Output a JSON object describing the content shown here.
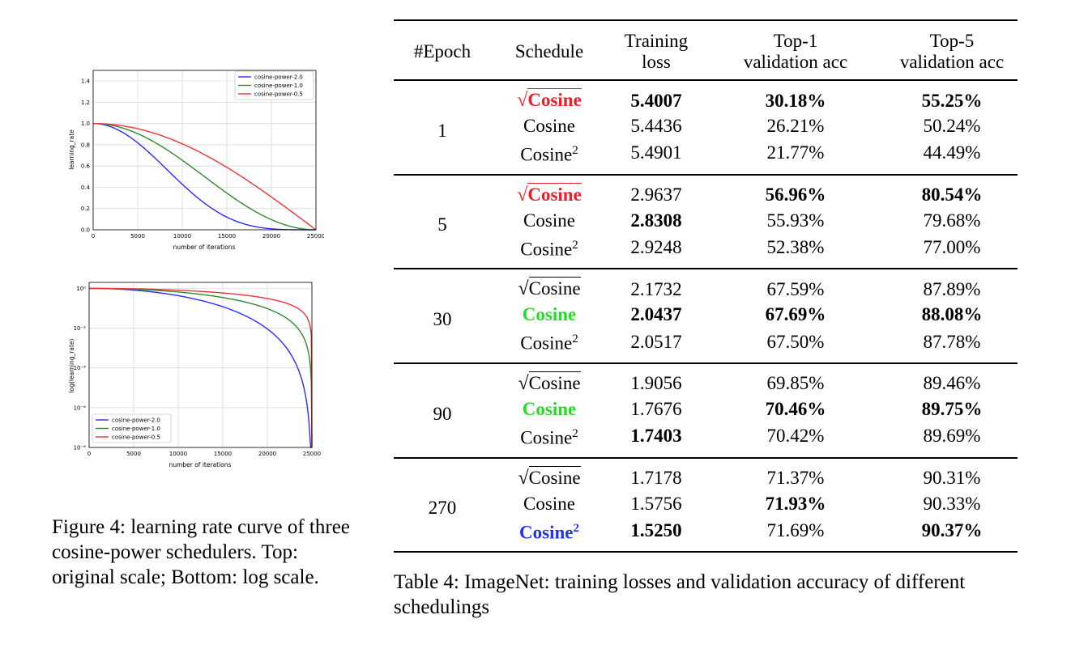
{
  "figure": {
    "caption": "Figure 4: learning rate curve of three cosine-power schedulers. Top: original scale; Bottom: log scale."
  },
  "charts": [
    {
      "type": "line",
      "xlabel": "number of iterations",
      "ylabel": "learning_rate",
      "xlim": [
        0,
        25000
      ],
      "ylim": [
        0,
        1.5
      ],
      "xticks": [
        "0",
        "5000",
        "10000",
        "15000",
        "20000",
        "25000"
      ],
      "yticks": [
        "0.0",
        "0.2",
        "0.4",
        "0.6",
        "0.8",
        "1.0",
        "1.2",
        "1.4"
      ],
      "grid": true,
      "log_y": false,
      "legend": "top-right"
    },
    {
      "type": "line",
      "xlabel": "number of iterations",
      "ylabel": "log(learning_rate)",
      "xlim": [
        0,
        25000
      ],
      "ylim": [
        1e-08,
        2
      ],
      "xticks": [
        "0",
        "5000",
        "10000",
        "15000",
        "20000",
        "25000"
      ],
      "yticks": [
        "10⁰",
        "10⁻²",
        "10⁻⁴",
        "10⁻⁶",
        "10⁻⁸"
      ],
      "grid": true,
      "log_y": true,
      "legend": "bottom-left"
    }
  ],
  "chart_data": {
    "type": "line",
    "function": "learning_rate = ((1 + cos(pi * x / 25000)) / 2) ^ power",
    "x_range": [
      0,
      25000
    ],
    "series": [
      {
        "name": "cosine-power-2.0",
        "power": 2.0,
        "color": "#2b2bff"
      },
      {
        "name": "cosine-power-1.0",
        "power": 1.0,
        "color": "#2e8b2e"
      },
      {
        "name": "cosine-power-0.5",
        "power": 0.5,
        "color": "#ee3333"
      }
    ]
  },
  "table": {
    "headers": {
      "epoch": "#Epoch",
      "schedule": "Schedule",
      "loss_1": "Training",
      "loss_2": "loss",
      "top1_1": "Top-1",
      "top1_2": "validation acc",
      "top5_1": "Top-5",
      "top5_2": "validation acc"
    },
    "schedule_names": {
      "sqrt": "Cosine",
      "plain": "Cosine",
      "sq": "Cosine",
      "sq_exp": "2"
    },
    "groups": [
      {
        "epoch": "1",
        "rows": [
          {
            "loss": "5.4007",
            "top1": "30.18%",
            "top5": "55.25%"
          },
          {
            "loss": "5.4436",
            "top1": "26.21%",
            "top5": "50.24%"
          },
          {
            "loss": "5.4901",
            "top1": "21.77%",
            "top5": "44.49%"
          }
        ]
      },
      {
        "epoch": "5",
        "rows": [
          {
            "loss": "2.9637",
            "top1": "56.96%",
            "top5": "80.54%"
          },
          {
            "loss": "2.8308",
            "top1": "55.93%",
            "top5": "79.68%"
          },
          {
            "loss": "2.9248",
            "top1": "52.38%",
            "top5": "77.00%"
          }
        ]
      },
      {
        "epoch": "30",
        "rows": [
          {
            "loss": "2.1732",
            "top1": "67.59%",
            "top5": "87.89%"
          },
          {
            "loss": "2.0437",
            "top1": "67.69%",
            "top5": "88.08%"
          },
          {
            "loss": "2.0517",
            "top1": "67.50%",
            "top5": "87.78%"
          }
        ]
      },
      {
        "epoch": "90",
        "rows": [
          {
            "loss": "1.9056",
            "top1": "69.85%",
            "top5": "89.46%"
          },
          {
            "loss": "1.7676",
            "top1": "70.46%",
            "top5": "89.75%"
          },
          {
            "loss": "1.7403",
            "top1": "70.42%",
            "top5": "89.69%"
          }
        ]
      },
      {
        "epoch": "270",
        "rows": [
          {
            "loss": "1.7178",
            "top1": "71.37%",
            "top5": "90.31%"
          },
          {
            "loss": "1.5756",
            "top1": "71.93%",
            "top5": "90.33%"
          },
          {
            "loss": "1.5250",
            "top1": "71.69%",
            "top5": "90.37%"
          }
        ]
      }
    ],
    "caption": "Table 4: ImageNet: training losses and validation accuracy of different schedulings"
  },
  "colors": {
    "best_red": "#ee1c24",
    "best_green": "#22dd22",
    "best_blue": "#2233ee"
  }
}
